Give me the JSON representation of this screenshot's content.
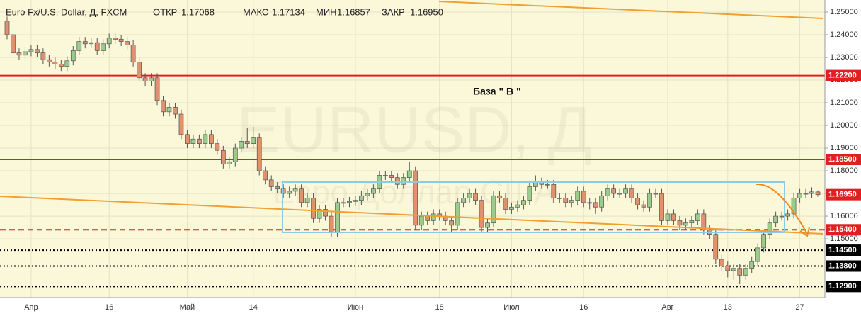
{
  "chart_data": {
    "type": "candlestick",
    "header": [
      {
        "text": "Euro Fx/U.S. Dollar, Д, FXCM"
      },
      {
        "text": "ОТКР"
      },
      {
        "text": "1.17068"
      },
      {
        "text": "МАКС"
      },
      {
        "text": "1.17134"
      },
      {
        "text": "МИН"
      },
      {
        "text": "1.16857"
      },
      {
        "text": "ЗАКР"
      },
      {
        "text": "1.16950"
      }
    ],
    "watermark": [
      "EURUSD, Д",
      "Евро Доллар США"
    ],
    "annotation": "База  \" В \"",
    "categories": [
      null,
      null,
      null,
      null,
      "Апр",
      null,
      null,
      null,
      null,
      null,
      null,
      null,
      null,
      null,
      null,
      null,
      null,
      "16",
      null,
      null,
      null,
      null,
      null,
      null,
      null,
      null,
      null,
      null,
      null,
      null,
      "Май",
      null,
      null,
      null,
      null,
      null,
      null,
      null,
      null,
      null,
      null,
      "14",
      null,
      null,
      null,
      null,
      null,
      null,
      null,
      null,
      null,
      null,
      null,
      null,
      null,
      null,
      null,
      null,
      "Июн",
      null,
      null,
      null,
      null,
      null,
      null,
      null,
      null,
      null,
      null,
      null,
      null,
      null,
      "18",
      null,
      null,
      null,
      null,
      null,
      null,
      null,
      null,
      null,
      null,
      null,
      "Июл",
      null,
      null,
      null,
      null,
      null,
      null,
      null,
      null,
      null,
      null,
      null,
      "16",
      null,
      null,
      null,
      null,
      null,
      null,
      null,
      null,
      null,
      null,
      null,
      null,
      null,
      "Авг",
      null,
      null,
      null,
      null,
      null,
      null,
      null,
      null,
      null,
      "13",
      null,
      null,
      null,
      null,
      null,
      null,
      null,
      null,
      null,
      null,
      null,
      "27",
      null,
      null,
      null
    ],
    "open": [
      1.246,
      1.24,
      1.232,
      1.231,
      1.2325,
      1.2335,
      1.232,
      1.229,
      1.228,
      1.227,
      1.226,
      1.2285,
      1.233,
      1.237,
      1.236,
      1.2365,
      1.233,
      1.236,
      1.2385,
      1.238,
      1.237,
      1.2355,
      1.228,
      1.221,
      1.2195,
      1.221,
      1.211,
      1.206,
      1.208,
      1.205,
      1.196,
      1.192,
      1.194,
      1.192,
      1.196,
      1.192,
      1.189,
      1.183,
      1.184,
      1.19,
      1.193,
      1.192,
      1.1945,
      1.18,
      1.176,
      1.173,
      1.172,
      1.17,
      1.171,
      1.172,
      1.166,
      1.168,
      1.159,
      1.163,
      1.16,
      1.153,
      1.166,
      1.166,
      1.1665,
      1.167,
      1.169,
      1.17,
      1.172,
      1.178,
      1.178,
      1.177,
      1.174,
      1.177,
      1.18,
      1.156,
      1.16,
      1.158,
      1.161,
      1.16,
      1.158,
      1.156,
      1.166,
      1.168,
      1.17,
      1.167,
      1.155,
      1.157,
      1.169,
      1.168,
      1.163,
      1.164,
      1.165,
      1.167,
      1.173,
      1.175,
      1.174,
      1.174,
      1.168,
      1.168,
      1.166,
      1.167,
      1.171,
      1.166,
      1.166,
      1.164,
      1.169,
      1.172,
      1.17,
      1.17,
      1.172,
      1.168,
      1.165,
      1.164,
      1.17,
      1.17,
      1.158,
      1.161,
      1.158,
      1.156,
      1.157,
      1.158,
      1.161,
      1.154,
      1.152,
      1.141,
      1.138,
      1.136,
      1.137,
      1.134,
      1.137,
      1.14,
      1.146,
      1.152,
      1.157,
      1.16,
      1.16,
      1.161,
      1.168,
      1.17,
      1.17,
      1.17068
    ],
    "high": [
      1.248,
      1.242,
      1.234,
      1.2345,
      1.2355,
      1.2355,
      1.234,
      1.231,
      1.23,
      1.229,
      1.2305,
      1.235,
      1.239,
      1.239,
      1.2385,
      1.2385,
      1.238,
      1.2405,
      1.2405,
      1.24,
      1.239,
      1.2375,
      1.23,
      1.223,
      1.223,
      1.223,
      1.213,
      1.21,
      1.21,
      1.207,
      1.198,
      1.196,
      1.196,
      1.198,
      1.198,
      1.194,
      1.191,
      1.186,
      1.192,
      1.195,
      1.199,
      1.1995,
      1.1965,
      1.182,
      1.178,
      1.175,
      1.174,
      1.173,
      1.174,
      1.174,
      1.17,
      1.17,
      1.165,
      1.165,
      1.162,
      1.168,
      1.168,
      1.1685,
      1.169,
      1.171,
      1.172,
      1.174,
      1.18,
      1.18,
      1.18,
      1.179,
      1.179,
      1.184,
      1.182,
      1.162,
      1.162,
      1.163,
      1.163,
      1.162,
      1.16,
      1.168,
      1.17,
      1.172,
      1.172,
      1.169,
      1.159,
      1.171,
      1.171,
      1.17,
      1.166,
      1.167,
      1.169,
      1.175,
      1.178,
      1.177,
      1.176,
      1.176,
      1.17,
      1.17,
      1.169,
      1.173,
      1.173,
      1.168,
      1.168,
      1.171,
      1.174,
      1.174,
      1.172,
      1.174,
      1.174,
      1.17,
      1.167,
      1.172,
      1.172,
      1.172,
      1.163,
      1.163,
      1.16,
      1.159,
      1.16,
      1.163,
      1.163,
      1.156,
      1.154,
      1.143,
      1.14,
      1.139,
      1.139,
      1.139,
      1.142,
      1.148,
      1.154,
      1.159,
      1.162,
      1.162,
      1.163,
      1.17,
      1.172,
      1.172,
      1.1727,
      1.17134
    ],
    "low": [
      1.238,
      1.23,
      1.229,
      1.229,
      1.2305,
      1.23,
      1.227,
      1.226,
      1.225,
      1.224,
      1.224,
      1.2265,
      1.231,
      1.234,
      1.234,
      1.231,
      1.231,
      1.234,
      1.236,
      1.235,
      1.2335,
      1.226,
      1.219,
      1.2175,
      1.2175,
      1.209,
      1.204,
      1.204,
      1.203,
      1.194,
      1.19,
      1.19,
      1.19,
      1.19,
      1.19,
      1.187,
      1.181,
      1.181,
      1.182,
      1.188,
      1.19,
      1.19,
      1.178,
      1.174,
      1.171,
      1.17,
      1.168,
      1.168,
      1.169,
      1.164,
      1.164,
      1.157,
      1.157,
      1.158,
      1.151,
      1.151,
      1.164,
      1.164,
      1.1645,
      1.165,
      1.167,
      1.168,
      1.17,
      1.176,
      1.175,
      1.172,
      1.172,
      1.175,
      1.154,
      1.154,
      1.156,
      1.156,
      1.158,
      1.156,
      1.153,
      1.154,
      1.164,
      1.166,
      1.165,
      1.153,
      1.153,
      1.155,
      1.166,
      1.161,
      1.161,
      1.162,
      1.163,
      1.165,
      1.171,
      1.172,
      1.172,
      1.166,
      1.166,
      1.164,
      1.164,
      1.165,
      1.164,
      1.163,
      1.161,
      1.162,
      1.167,
      1.168,
      1.168,
      1.168,
      1.166,
      1.163,
      1.162,
      1.162,
      1.168,
      1.156,
      1.156,
      1.156,
      1.154,
      1.154,
      1.155,
      1.156,
      1.152,
      1.15,
      1.139,
      1.136,
      1.133,
      1.132,
      1.13,
      1.132,
      1.135,
      1.138,
      1.144,
      1.15,
      1.155,
      1.158,
      1.158,
      1.159,
      1.166,
      1.168,
      1.168,
      1.16857
    ],
    "close": [
      1.24,
      1.232,
      1.231,
      1.2325,
      1.2335,
      1.232,
      1.229,
      1.228,
      1.227,
      1.226,
      1.2285,
      1.233,
      1.237,
      1.236,
      1.2365,
      1.233,
      1.236,
      1.2385,
      1.238,
      1.237,
      1.2355,
      1.228,
      1.221,
      1.2195,
      1.221,
      1.211,
      1.206,
      1.208,
      1.205,
      1.196,
      1.192,
      1.194,
      1.192,
      1.196,
      1.192,
      1.189,
      1.183,
      1.184,
      1.19,
      1.193,
      1.192,
      1.1945,
      1.18,
      1.176,
      1.173,
      1.172,
      1.17,
      1.171,
      1.172,
      1.166,
      1.168,
      1.159,
      1.163,
      1.16,
      1.153,
      1.166,
      1.166,
      1.1665,
      1.167,
      1.169,
      1.17,
      1.172,
      1.178,
      1.178,
      1.177,
      1.174,
      1.177,
      1.18,
      1.156,
      1.16,
      1.158,
      1.161,
      1.16,
      1.158,
      1.156,
      1.166,
      1.168,
      1.17,
      1.167,
      1.155,
      1.157,
      1.169,
      1.168,
      1.163,
      1.164,
      1.165,
      1.167,
      1.173,
      1.175,
      1.174,
      1.174,
      1.168,
      1.168,
      1.166,
      1.167,
      1.171,
      1.166,
      1.166,
      1.164,
      1.169,
      1.172,
      1.17,
      1.17,
      1.172,
      1.168,
      1.165,
      1.164,
      1.17,
      1.17,
      1.158,
      1.161,
      1.158,
      1.156,
      1.157,
      1.158,
      1.161,
      1.154,
      1.152,
      1.141,
      1.138,
      1.136,
      1.137,
      1.134,
      1.137,
      1.14,
      1.146,
      1.152,
      1.157,
      1.16,
      1.16,
      1.161,
      1.168,
      1.17,
      1.17,
      1.1707,
      1.1695
    ],
    "up_color": "#9ccc8c",
    "down_color": "#e0916e",
    "ylim": [
      1.1241,
      1.2553
    ],
    "yticks": [
      {
        "value": 1.25,
        "label": "1.25000"
      },
      {
        "value": 1.24,
        "label": "1.24000"
      },
      {
        "value": 1.23,
        "label": "1.23000"
      },
      {
        "value": 1.22,
        "label": "1.22000"
      },
      {
        "value": 1.21,
        "label": "1.21000"
      },
      {
        "value": 1.2,
        "label": "1.20000"
      },
      {
        "value": 1.19,
        "label": "1.19000"
      },
      {
        "value": 1.18,
        "label": "1.18000"
      },
      {
        "value": 1.17,
        "label": "1.17000"
      },
      {
        "value": 1.16,
        "label": "1.16000"
      },
      {
        "value": 1.15,
        "label": "1.15000"
      }
    ],
    "grid": true,
    "levels": [
      {
        "value": 1.222,
        "label": "1.22200",
        "color": "#e02020",
        "style": "solid"
      },
      {
        "value": 1.185,
        "label": "1.18500",
        "color": "#e02020",
        "style": "solid"
      },
      {
        "value": 1.154,
        "label": "1.15400",
        "color": "#e02020",
        "style": "dashed"
      },
      {
        "value": 1.145,
        "label": "1.14500",
        "color": "#000000",
        "style": "dotted"
      },
      {
        "value": 1.138,
        "label": "1.13800",
        "color": "#000000",
        "style": "dotted"
      },
      {
        "value": 1.129,
        "label": "1.12900",
        "color": "#000000",
        "style": "dotted"
      }
    ],
    "last_price": {
      "value": 1.1695,
      "label": "1.16950",
      "color": "#e02020"
    }
  }
}
